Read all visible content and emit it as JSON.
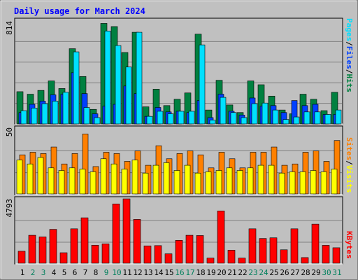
{
  "title": "Daily usage for March 2024",
  "colors": {
    "background": "#c0c0c0",
    "title": "#0000ff",
    "hits": "#008040",
    "files": "#0040ff",
    "pages": "#00e0ff",
    "visits": "#ffff00",
    "sites": "#ff8000",
    "kbytes": "#ff0000",
    "weekday_label": "#000000",
    "weekend_label": "#00805c"
  },
  "chart_data": [
    {
      "type": "bar",
      "title": "Daily usage for March 2024",
      "ylabel_parts": [
        "Pages",
        "Files",
        "Hits"
      ],
      "ymax_label": "814",
      "ylim": [
        0,
        814
      ],
      "categories": [
        "1",
        "2",
        "3",
        "4",
        "5",
        "6",
        "7",
        "8",
        "9",
        "10",
        "11",
        "12",
        "13",
        "14",
        "15",
        "16",
        "17",
        "18",
        "19",
        "20",
        "21",
        "22",
        "23",
        "24",
        "25",
        "26",
        "27",
        "28",
        "29",
        "30",
        "31"
      ],
      "series": [
        {
          "name": "Hits",
          "values": [
            255,
            235,
            265,
            340,
            280,
            595,
            375,
            115,
            795,
            770,
            565,
            725,
            135,
            275,
            145,
            195,
            245,
            710,
            110,
            345,
            150,
            90,
            340,
            310,
            220,
            110,
            80,
            235,
            195,
            105,
            250
          ]
        },
        {
          "name": "Files",
          "values": [
            90,
            155,
            180,
            230,
            235,
            405,
            240,
            80,
            140,
            155,
            300,
            240,
            60,
            130,
            95,
            100,
            90,
            185,
            50,
            235,
            100,
            70,
            205,
            140,
            145,
            90,
            185,
            145,
            155,
            75,
            75
          ]
        },
        {
          "name": "Pages",
          "values": [
            105,
            125,
            160,
            180,
            250,
            570,
            130,
            50,
            735,
            620,
            450,
            725,
            60,
            100,
            80,
            100,
            100,
            625,
            30,
            210,
            90,
            50,
            160,
            165,
            110,
            35,
            55,
            95,
            95,
            75,
            110
          ]
        }
      ],
      "weekend_days": [
        "2",
        "3",
        "9",
        "10",
        "16",
        "17",
        "23",
        "24",
        "30",
        "31"
      ]
    },
    {
      "type": "bar",
      "ylabel_parts": [
        "Sites",
        "Visits"
      ],
      "ymax_label": "50",
      "ylim": [
        0,
        50
      ],
      "categories": [
        "1",
        "2",
        "3",
        "4",
        "5",
        "6",
        "7",
        "8",
        "9",
        "10",
        "11",
        "12",
        "13",
        "14",
        "15",
        "16",
        "17",
        "18",
        "19",
        "20",
        "21",
        "22",
        "23",
        "24",
        "25",
        "26",
        "27",
        "28",
        "29",
        "30",
        "31"
      ],
      "series": [
        {
          "name": "Visits",
          "values": [
            26,
            23,
            28,
            20,
            18,
            20,
            19,
            17,
            27,
            23,
            19,
            26,
            16,
            22,
            24,
            18,
            22,
            16,
            17,
            18,
            20,
            18,
            20,
            22,
            22,
            16,
            17,
            17,
            18,
            17,
            19
          ]
        },
        {
          "name": "Sites",
          "values": [
            30,
            32,
            31,
            36,
            23,
            31,
            46,
            21,
            32,
            31,
            25,
            33,
            22,
            37,
            27,
            31,
            33,
            30,
            20,
            32,
            27,
            20,
            32,
            32,
            36,
            22,
            23,
            32,
            33,
            25,
            41
          ]
        }
      ]
    },
    {
      "type": "bar",
      "ylabel_parts": [
        "KBytes"
      ],
      "ymax_label": "4793",
      "ylim": [
        0,
        4793
      ],
      "categories": [
        "1",
        "2",
        "3",
        "4",
        "5",
        "6",
        "7",
        "8",
        "9",
        "10",
        "11",
        "12",
        "13",
        "14",
        "15",
        "16",
        "17",
        "18",
        "19",
        "20",
        "21",
        "22",
        "23",
        "24",
        "25",
        "26",
        "27",
        "28",
        "29",
        "30",
        "31"
      ],
      "series": [
        {
          "name": "KBytes",
          "values": [
            890,
            2080,
            1960,
            2520,
            780,
            2560,
            3380,
            1340,
            1440,
            4410,
            4790,
            3260,
            1290,
            1310,
            700,
            1700,
            2080,
            2060,
            380,
            3890,
            970,
            380,
            2560,
            1840,
            1890,
            1000,
            2560,
            420,
            2910,
            1330,
            1150
          ]
        }
      ]
    }
  ]
}
